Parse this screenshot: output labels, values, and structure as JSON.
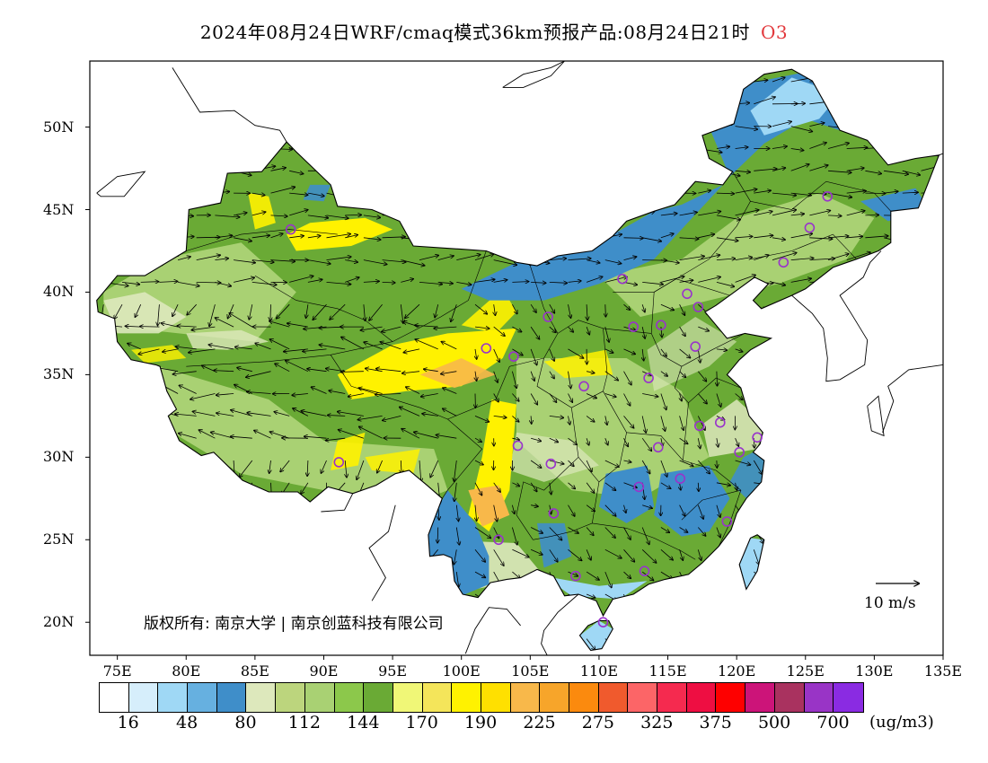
{
  "title": {
    "main": "2024年08月24日WRF/cmaq模式36km预报产品:08月24日21时",
    "pollutant": "O3"
  },
  "axes": {
    "lat_labels": [
      "50N",
      "45N",
      "40N",
      "35N",
      "30N",
      "25N",
      "20N"
    ],
    "lat_values": [
      50,
      45,
      40,
      35,
      30,
      25,
      20
    ],
    "lon_labels": [
      "75E",
      "80E",
      "85E",
      "90E",
      "95E",
      "100E",
      "105E",
      "110E",
      "115E",
      "120E",
      "125E",
      "130E",
      "135E"
    ],
    "lon_values": [
      75,
      80,
      85,
      90,
      95,
      100,
      105,
      110,
      115,
      120,
      125,
      130,
      135
    ],
    "lon_range": [
      73,
      135
    ],
    "lat_range": [
      18,
      54
    ]
  },
  "copyright": "版权所有: 南京大学 | 南京创蓝科技有限公司",
  "wind_reference": "10  m/s",
  "legend": {
    "colors": [
      "#ffffff",
      "#d6eefb",
      "#9fd8f5",
      "#66b0e0",
      "#3f8ec9",
      "#dde8bc",
      "#bcd57d",
      "#a9d173",
      "#8cc84b",
      "#6aaa35",
      "#f0f777",
      "#f4e55a",
      "#fff200",
      "#ffe000",
      "#f8b84a",
      "#f7a52a",
      "#fb8a0e",
      "#f05a2d",
      "#fc6567",
      "#f52a4f",
      "#ee0e42",
      "#fe0000",
      "#cc1479",
      "#a9325f",
      "#9934c6",
      "#8a2be2"
    ],
    "labels": [
      "16",
      "48",
      "80",
      "112",
      "144",
      "170",
      "190",
      "225",
      "275",
      "325",
      "375",
      "500",
      "700"
    ],
    "unit": "(ug/m3)"
  },
  "map_colors": {
    "land_low": "#6aaa35",
    "land_mid": "#a9d173",
    "land_light": "#dde8bc",
    "yellow": "#fff200",
    "orange": "#f8b84a",
    "blue": "#3f8ec9",
    "light_blue": "#9fd8f5",
    "station": "#9933cc"
  },
  "stations": [
    [
      87.6,
      43.8
    ],
    [
      91.1,
      29.7
    ],
    [
      101.8,
      36.6
    ],
    [
      103.8,
      36.1
    ],
    [
      106.3,
      38.5
    ],
    [
      104.1,
      30.7
    ],
    [
      106.5,
      29.6
    ],
    [
      106.7,
      26.6
    ],
    [
      102.7,
      25.0
    ],
    [
      108.3,
      22.8
    ],
    [
      110.3,
      20.0
    ],
    [
      113.3,
      23.1
    ],
    [
      108.9,
      34.3
    ],
    [
      111.7,
      40.8
    ],
    [
      112.5,
      37.9
    ],
    [
      114.5,
      38.0
    ],
    [
      116.4,
      39.9
    ],
    [
      117.2,
      39.1
    ],
    [
      117.0,
      36.7
    ],
    [
      113.6,
      34.8
    ],
    [
      114.3,
      30.6
    ],
    [
      112.9,
      28.2
    ],
    [
      115.9,
      28.7
    ],
    [
      117.3,
      31.9
    ],
    [
      118.8,
      32.1
    ],
    [
      120.2,
      30.3
    ],
    [
      121.5,
      31.2
    ],
    [
      119.3,
      26.1
    ],
    [
      123.4,
      41.8
    ],
    [
      125.3,
      43.9
    ],
    [
      126.6,
      45.8
    ]
  ]
}
